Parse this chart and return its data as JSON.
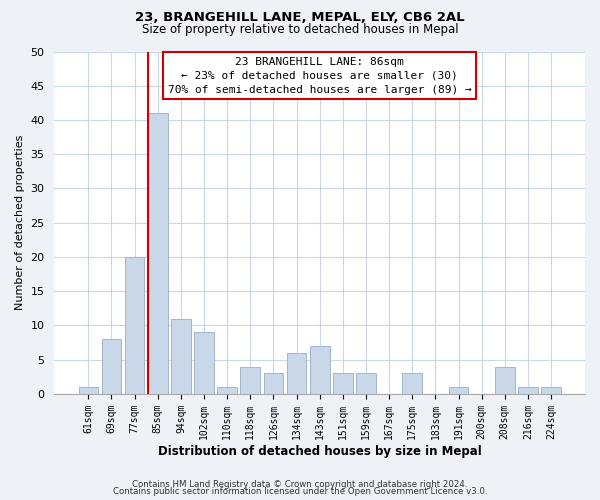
{
  "title": "23, BRANGEHILL LANE, MEPAL, ELY, CB6 2AL",
  "subtitle": "Size of property relative to detached houses in Mepal",
  "xlabel": "Distribution of detached houses by size in Mepal",
  "ylabel": "Number of detached properties",
  "bar_labels": [
    "61sqm",
    "69sqm",
    "77sqm",
    "85sqm",
    "94sqm",
    "102sqm",
    "110sqm",
    "118sqm",
    "126sqm",
    "134sqm",
    "143sqm",
    "151sqm",
    "159sqm",
    "167sqm",
    "175sqm",
    "183sqm",
    "191sqm",
    "200sqm",
    "208sqm",
    "216sqm",
    "224sqm"
  ],
  "bar_heights": [
    1,
    8,
    20,
    41,
    11,
    9,
    1,
    4,
    3,
    6,
    7,
    3,
    3,
    0,
    3,
    0,
    1,
    0,
    4,
    1,
    1
  ],
  "bar_color": "#c8d8e8",
  "bar_edge_color": "#a0b8cc",
  "vline_index": 3,
  "vline_color": "#cc0000",
  "ylim": [
    0,
    50
  ],
  "yticks": [
    0,
    5,
    10,
    15,
    20,
    25,
    30,
    35,
    40,
    45,
    50
  ],
  "annotation_title": "23 BRANGEHILL LANE: 86sqm",
  "annotation_line1": "← 23% of detached houses are smaller (30)",
  "annotation_line2": "70% of semi-detached houses are larger (89) →",
  "footer_line1": "Contains HM Land Registry data © Crown copyright and database right 2024.",
  "footer_line2": "Contains public sector information licensed under the Open Government Licence v3.0.",
  "bg_color": "#eef2f7",
  "plot_bg_color": "#ffffff",
  "grid_color": "#c8d8e8"
}
